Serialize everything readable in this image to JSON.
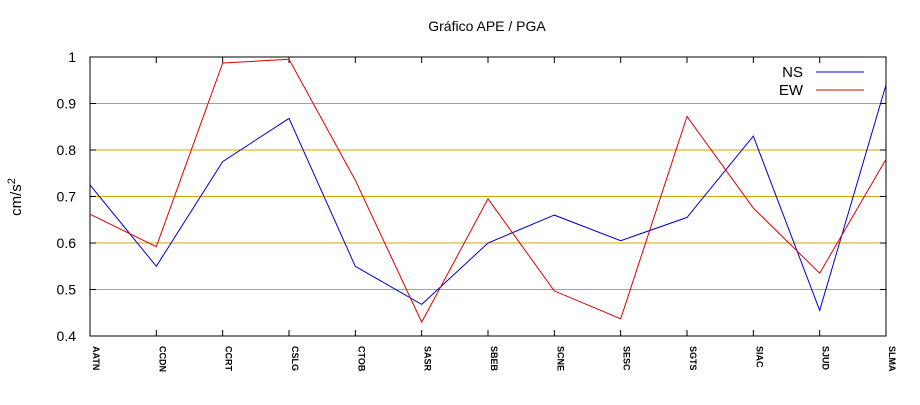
{
  "chart_data": {
    "type": "line",
    "title": "Gráfico  APE / PGA",
    "xlabel": "",
    "ylabel": "cm/s",
    "ylabel_superscript": "2",
    "ylim": [
      0.4,
      1.0
    ],
    "yticks": [
      "0.4",
      "0.5",
      "0.6",
      "0.7",
      "0.8",
      "0.9",
      "1"
    ],
    "grid": "horizontal",
    "grid_color": "#d4a400",
    "legend_position": "top-right",
    "categories": [
      "AATN",
      "CCDN",
      "CCRT",
      "CSLG",
      "CTOB",
      "SASR",
      "SBEB",
      "SCNE",
      "SESC",
      "SGTS",
      "SIAC",
      "SJUD",
      "SLMA"
    ],
    "series": [
      {
        "name": "NS",
        "color": "#0000cc",
        "values": [
          0.725,
          0.55,
          0.775,
          0.868,
          0.55,
          0.468,
          0.6,
          0.66,
          0.605,
          0.655,
          0.83,
          0.455,
          0.94
        ]
      },
      {
        "name": "EW",
        "color": "#dd0000",
        "values": [
          0.662,
          0.592,
          0.987,
          0.995,
          0.735,
          0.43,
          0.695,
          0.497,
          0.437,
          0.872,
          0.675,
          0.535,
          0.78
        ]
      }
    ]
  }
}
